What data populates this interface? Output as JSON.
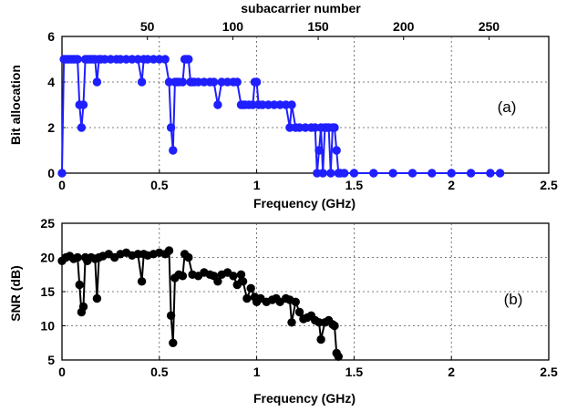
{
  "colors": {
    "series_a": "#1f1fff",
    "series_b": "#000000",
    "grid": "#555555"
  },
  "chart_data": [
    {
      "type": "line",
      "panel_label": "(a)",
      "xlabel": "Frequency (GHz)",
      "ylabel": "Bit allocation",
      "top_xlabel": "subacarrier number",
      "xlim": [
        0,
        2.5
      ],
      "ylim": [
        0,
        6
      ],
      "xticks": [
        "0",
        "0.5",
        "1",
        "1.5",
        "2",
        "2.5"
      ],
      "yticks": [
        "0",
        "2",
        "4",
        "6"
      ],
      "top_xticks": [
        "50",
        "100",
        "150",
        "200",
        "250"
      ],
      "top_xtick_values": [
        50,
        100,
        150,
        200,
        250
      ],
      "top_xlim": [
        0,
        285
      ],
      "grid": true,
      "marker": "circle",
      "series": [
        {
          "x": [
            0.0,
            0.01,
            0.02,
            0.03,
            0.04,
            0.05,
            0.06,
            0.07,
            0.08,
            0.09,
            0.1,
            0.11,
            0.12,
            0.13,
            0.14,
            0.15,
            0.16,
            0.17,
            0.18,
            0.19,
            0.2,
            0.22,
            0.25,
            0.28,
            0.3,
            0.33,
            0.36,
            0.39,
            0.41,
            0.42,
            0.44,
            0.47,
            0.5,
            0.53,
            0.55,
            0.56,
            0.57,
            0.58,
            0.59,
            0.6,
            0.62,
            0.63,
            0.64,
            0.65,
            0.66,
            0.67,
            0.68,
            0.7,
            0.73,
            0.76,
            0.78,
            0.8,
            0.82,
            0.85,
            0.88,
            0.9,
            0.92,
            0.93,
            0.94,
            0.96,
            0.98,
            0.99,
            1.0,
            1.01,
            1.03,
            1.06,
            1.09,
            1.12,
            1.15,
            1.17,
            1.18,
            1.2,
            1.22,
            1.25,
            1.28,
            1.3,
            1.31,
            1.32,
            1.33,
            1.34,
            1.35,
            1.36,
            1.37,
            1.38,
            1.39,
            1.4,
            1.41,
            1.42,
            1.43,
            1.45,
            1.5,
            1.6,
            1.7,
            1.8,
            1.9,
            2.0,
            2.1,
            2.2,
            2.25
          ],
          "y": [
            0,
            5,
            5,
            5,
            5,
            5,
            5,
            5,
            5,
            3,
            2,
            3,
            5,
            5,
            5,
            5,
            5,
            5,
            4,
            5,
            5,
            5,
            5,
            5,
            5,
            5,
            5,
            5,
            4,
            5,
            5,
            5,
            5,
            5,
            4,
            2,
            1,
            4,
            4,
            4,
            4,
            5,
            5,
            5,
            4,
            4,
            4,
            4,
            4,
            4,
            4,
            3,
            4,
            4,
            4,
            4,
            3,
            3,
            3,
            3,
            3,
            4,
            4,
            3,
            3,
            3,
            3,
            3,
            3,
            2,
            3,
            2,
            2,
            2,
            2,
            2,
            0,
            1,
            2,
            0,
            2,
            2,
            2,
            0,
            2,
            2,
            1,
            0,
            0,
            0,
            0,
            0,
            0,
            0,
            0,
            0,
            0,
            0,
            0
          ]
        }
      ]
    },
    {
      "type": "line",
      "panel_label": "(b)",
      "xlabel": "Frequency (GHz)",
      "ylabel": "SNR (dB)",
      "xlim": [
        0,
        2.5
      ],
      "ylim": [
        5,
        25
      ],
      "xticks": [
        "0",
        "0.5",
        "1",
        "1.5",
        "2",
        "2.5"
      ],
      "yticks": [
        "5",
        "10",
        "15",
        "20",
        "25"
      ],
      "grid": true,
      "marker": "circle",
      "series": [
        {
          "x": [
            0.0,
            0.02,
            0.04,
            0.06,
            0.08,
            0.09,
            0.1,
            0.11,
            0.12,
            0.13,
            0.15,
            0.17,
            0.18,
            0.19,
            0.21,
            0.24,
            0.27,
            0.3,
            0.33,
            0.36,
            0.39,
            0.41,
            0.42,
            0.44,
            0.47,
            0.5,
            0.53,
            0.55,
            0.56,
            0.57,
            0.58,
            0.6,
            0.62,
            0.63,
            0.65,
            0.67,
            0.7,
            0.73,
            0.76,
            0.78,
            0.8,
            0.82,
            0.85,
            0.88,
            0.9,
            0.92,
            0.93,
            0.95,
            0.97,
            0.99,
            1.0,
            1.02,
            1.05,
            1.08,
            1.1,
            1.12,
            1.15,
            1.17,
            1.18,
            1.2,
            1.22,
            1.24,
            1.26,
            1.28,
            1.3,
            1.32,
            1.33,
            1.35,
            1.37,
            1.39,
            1.4,
            1.41,
            1.42
          ],
          "y": [
            19.5,
            20,
            20.2,
            19.8,
            20,
            16,
            12,
            12.8,
            20,
            19.5,
            20,
            19.8,
            14,
            20,
            20.2,
            20.5,
            20,
            20.5,
            20.7,
            20.3,
            20.5,
            16.5,
            20.5,
            20.3,
            20.5,
            20.7,
            20.5,
            21,
            11.5,
            7.5,
            17,
            17.5,
            17.3,
            20.5,
            20,
            17.5,
            17.3,
            17.8,
            17.5,
            17.3,
            16.5,
            17.5,
            17.8,
            17.3,
            16,
            17.5,
            16.5,
            14,
            15.5,
            14.2,
            13.5,
            14,
            13.5,
            13.8,
            14,
            13.5,
            14,
            13.8,
            10.5,
            13.5,
            12,
            11,
            11.2,
            11.5,
            10.8,
            10.5,
            8,
            10.5,
            10.8,
            10.2,
            10,
            6,
            5.5
          ]
        }
      ]
    }
  ]
}
